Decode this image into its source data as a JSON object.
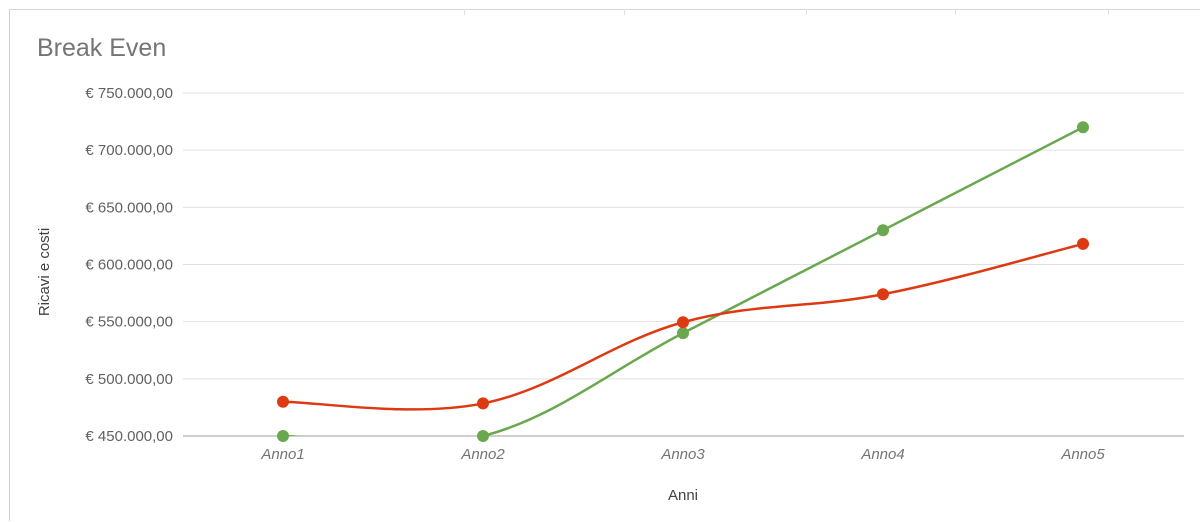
{
  "chart_data": {
    "type": "line",
    "title": "Break Even",
    "xlabel": "Anni",
    "ylabel": "Ricavi e costi",
    "categories": [
      "Anno1",
      "Anno2",
      "Anno3",
      "Anno4",
      "Anno5"
    ],
    "ylim": [
      450000,
      750000
    ],
    "yticks": [
      450000,
      500000,
      550000,
      600000,
      650000,
      700000,
      750000
    ],
    "ytick_labels": [
      "€ 450.000,00",
      "€ 500.000,00",
      "€ 550.000,00",
      "€ 600.000,00",
      "€ 650.000,00",
      "€ 700.000,00",
      "€ 750.000,00"
    ],
    "grid": true,
    "legend": "none",
    "series": [
      {
        "color": "#6aa84f",
        "values": [
          450000,
          450000,
          540000,
          630000,
          720000
        ]
      },
      {
        "color": "#dd3a12",
        "values": [
          480000,
          478500,
          549500,
          574000,
          618000
        ]
      }
    ]
  }
}
